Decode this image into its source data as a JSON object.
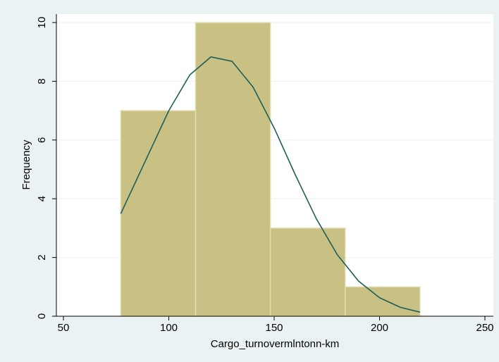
{
  "chart_data": {
    "type": "histogram",
    "bins": [
      77.2,
      112.7,
      148.2,
      183.7,
      219.2
    ],
    "values": [
      7,
      10,
      3,
      1
    ],
    "color": "#c9c083",
    "xlabel": "Cargo_turnovermlntonn-km",
    "ylabel": "Frequency",
    "xlim": [
      50,
      250
    ],
    "xticks": [
      50,
      100,
      150,
      200,
      250
    ],
    "ylim": [
      0,
      10
    ],
    "yticks": [
      0,
      2,
      4,
      6,
      8,
      10
    ],
    "grid": true,
    "curve": {
      "color": "#1e5f5a",
      "x": [
        77.2,
        90,
        100,
        110,
        120,
        130,
        140,
        150,
        160,
        170,
        180,
        190,
        200,
        210,
        219.2
      ],
      "values": [
        3.49,
        5.46,
        7.0,
        8.22,
        8.83,
        8.68,
        7.8,
        6.41,
        4.82,
        3.32,
        2.09,
        1.2,
        0.63,
        0.3,
        0.14
      ]
    }
  }
}
